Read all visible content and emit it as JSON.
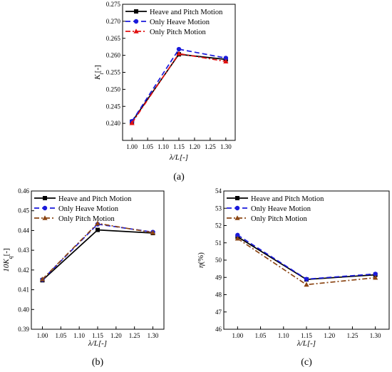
{
  "chart_data": [
    {
      "panel_label": "(a)",
      "type": "line",
      "x": [
        1.0,
        1.15,
        1.3
      ],
      "xlabel": "λ/L[-]",
      "ylabel": "Kt[-]",
      "ylabel_main": "K",
      "ylabel_sub": "t",
      "ylabel_suffix": "[-]",
      "xlim": [
        0.97,
        1.33
      ],
      "ylim": [
        0.235,
        0.275
      ],
      "xticks": [
        1.0,
        1.05,
        1.1,
        1.15,
        1.2,
        1.25,
        1.3
      ],
      "xtick_labels": [
        "1.00",
        "1.05",
        "1.10",
        "1.15",
        "1.20",
        "1.25",
        "1.30"
      ],
      "yticks": [
        0.24,
        0.245,
        0.25,
        0.255,
        0.26,
        0.265,
        0.27,
        0.275
      ],
      "ytick_labels": [
        "0.240",
        "0.245",
        "0.250",
        "0.255",
        "0.260",
        "0.265",
        "0.270",
        "0.275"
      ],
      "grid": false,
      "legend_position": "top-left",
      "series": [
        {
          "name": "Heave and Pitch Motion",
          "values": [
            0.2405,
            0.2603,
            0.2588
          ],
          "color": "#000000",
          "dash": "solid",
          "marker": "square"
        },
        {
          "name": "Only Heave Motion",
          "values": [
            0.2406,
            0.2618,
            0.2592
          ],
          "color": "#1a1adb",
          "dash": "dash",
          "marker": "circle"
        },
        {
          "name": "Only Pitch Motion",
          "values": [
            0.2401,
            0.2605,
            0.2582
          ],
          "color": "#e01010",
          "dash": "dashdot",
          "marker": "triangle"
        }
      ]
    },
    {
      "panel_label": "(b)",
      "type": "line",
      "x": [
        1.0,
        1.15,
        1.3
      ],
      "xlabel": "λ/L[-]",
      "ylabel": "10Kq[-]",
      "ylabel_main": "10K",
      "ylabel_sub": "q",
      "ylabel_suffix": "[-]",
      "xlim": [
        0.97,
        1.33
      ],
      "ylim": [
        0.39,
        0.46
      ],
      "xticks": [
        1.0,
        1.05,
        1.1,
        1.15,
        1.2,
        1.25,
        1.3
      ],
      "xtick_labels": [
        "1.00",
        "1.05",
        "1.10",
        "1.15",
        "1.20",
        "1.25",
        "1.30"
      ],
      "yticks": [
        0.39,
        0.4,
        0.41,
        0.42,
        0.43,
        0.44,
        0.45,
        0.46
      ],
      "ytick_labels": [
        "0.39",
        "0.40",
        "0.41",
        "0.42",
        "0.43",
        "0.44",
        "0.45",
        "0.46"
      ],
      "grid": false,
      "legend_position": "top-left",
      "series": [
        {
          "name": "Heave and Pitch Motion",
          "values": [
            0.4148,
            0.4403,
            0.4387
          ],
          "color": "#000000",
          "dash": "solid",
          "marker": "square"
        },
        {
          "name": "Only Heave Motion",
          "values": [
            0.4151,
            0.4432,
            0.4392
          ],
          "color": "#1a1adb",
          "dash": "dash",
          "marker": "circle"
        },
        {
          "name": "Only Pitch Motion",
          "values": [
            0.4153,
            0.4436,
            0.4389
          ],
          "color": "#8b4513",
          "dash": "dashdot",
          "marker": "triangle"
        }
      ]
    },
    {
      "panel_label": "(c)",
      "type": "line",
      "x": [
        1.0,
        1.15,
        1.3
      ],
      "xlabel": "λ/L[-]",
      "ylabel": "η(%)",
      "ylabel_main": "η",
      "ylabel_sub": "",
      "ylabel_suffix": "(%)",
      "xlim": [
        0.97,
        1.33
      ],
      "ylim": [
        46,
        54
      ],
      "xticks": [
        1.0,
        1.05,
        1.1,
        1.15,
        1.2,
        1.25,
        1.3
      ],
      "xtick_labels": [
        "1.00",
        "1.05",
        "1.10",
        "1.15",
        "1.20",
        "1.25",
        "1.30"
      ],
      "yticks": [
        46,
        47,
        48,
        49,
        50,
        51,
        52,
        53,
        54
      ],
      "ytick_labels": [
        "46",
        "47",
        "48",
        "49",
        "50",
        "51",
        "52",
        "53",
        "54"
      ],
      "grid": false,
      "legend_position": "top-left",
      "series": [
        {
          "name": "Heave and Pitch Motion",
          "values": [
            51.35,
            48.88,
            49.15
          ],
          "color": "#000000",
          "dash": "solid",
          "marker": "square"
        },
        {
          "name": "Only Heave Motion",
          "values": [
            51.45,
            48.9,
            49.2
          ],
          "color": "#1a1adb",
          "dash": "dash",
          "marker": "circle"
        },
        {
          "name": "Only Pitch Motion",
          "values": [
            51.25,
            48.58,
            48.98
          ],
          "color": "#8b4513",
          "dash": "dashdot",
          "marker": "triangle"
        }
      ]
    }
  ]
}
